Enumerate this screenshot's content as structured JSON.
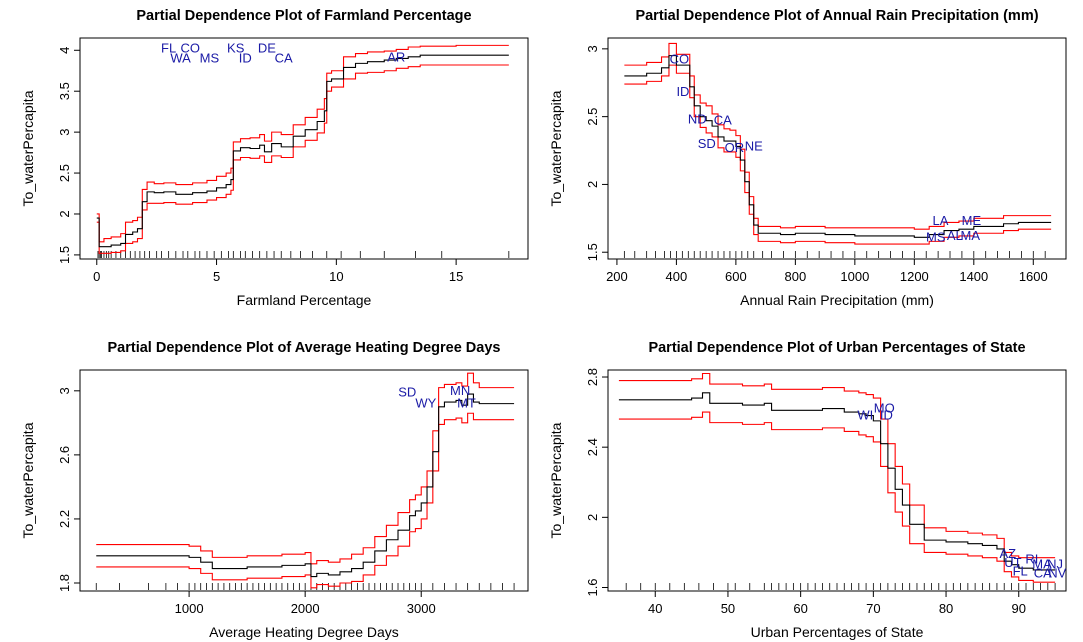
{
  "colors": {
    "estimate": "#000000",
    "confidence_band": "#ff0000",
    "state_label": "#1a1aa6",
    "rug": "#000000",
    "background": "#ffffff"
  },
  "chart_data": [
    {
      "type": "line",
      "title": "Partial Dependence Plot of Farmland Percentage",
      "xlabel": "Farmland Percentage",
      "ylabel": "To_waterPercapita",
      "xlim": [
        -0.7,
        18.0
      ],
      "ylim": [
        1.45,
        4.15
      ],
      "xticks": [
        0,
        5,
        10,
        15
      ],
      "yticks": [
        1.5,
        2.0,
        2.5,
        3.0,
        3.5,
        4.0
      ],
      "x": [
        0,
        0.1,
        0.3,
        0.6,
        1.0,
        1.2,
        1.5,
        1.7,
        1.9,
        2.1,
        2.4,
        2.8,
        3.3,
        4.0,
        4.6,
        5.0,
        5.4,
        5.6,
        5.7,
        6.0,
        6.4,
        6.8,
        7.0,
        7.3,
        7.7,
        8.2,
        8.7,
        9.2,
        9.5,
        9.6,
        9.8,
        10.3,
        10.8,
        11.3,
        12.0,
        12.5,
        13.0,
        13.5,
        15.0,
        17.2
      ],
      "series": [
        {
          "role": "estimate",
          "values": [
            1.95,
            1.6,
            1.6,
            1.62,
            1.64,
            1.75,
            1.78,
            1.82,
            2.15,
            2.27,
            2.26,
            2.27,
            2.24,
            2.26,
            2.28,
            2.32,
            2.36,
            2.42,
            2.77,
            2.81,
            2.8,
            2.84,
            2.76,
            2.86,
            2.82,
            2.95,
            3.03,
            3.13,
            3.26,
            3.62,
            3.65,
            3.79,
            3.84,
            3.86,
            3.88,
            3.9,
            3.92,
            3.94,
            3.94,
            3.94
          ]
        },
        {
          "role": "upper",
          "values": [
            2.0,
            1.66,
            1.7,
            1.72,
            1.76,
            1.9,
            1.92,
            1.96,
            2.3,
            2.39,
            2.37,
            2.38,
            2.36,
            2.38,
            2.41,
            2.46,
            2.5,
            2.56,
            2.88,
            2.92,
            2.93,
            2.97,
            2.89,
            3.0,
            2.97,
            3.09,
            3.18,
            3.28,
            3.41,
            3.72,
            3.75,
            3.92,
            3.96,
            3.98,
            3.99,
            4.01,
            4.04,
            4.05,
            4.06,
            4.06
          ]
        },
        {
          "role": "lower",
          "values": [
            1.9,
            1.52,
            1.52,
            1.53,
            1.55,
            1.64,
            1.66,
            1.7,
            2.05,
            2.13,
            2.13,
            2.14,
            2.12,
            2.14,
            2.17,
            2.2,
            2.24,
            2.29,
            2.66,
            2.69,
            2.68,
            2.71,
            2.63,
            2.71,
            2.69,
            2.82,
            2.9,
            2.99,
            3.11,
            3.5,
            3.55,
            3.65,
            3.72,
            3.73,
            3.75,
            3.78,
            3.8,
            3.82,
            3.82,
            3.82
          ]
        }
      ],
      "rug": [
        0.05,
        0.1,
        0.15,
        0.2,
        0.3,
        0.4,
        0.5,
        0.6,
        0.8,
        1.0,
        1.2,
        1.4,
        1.6,
        1.8,
        2.0,
        2.2,
        2.5,
        2.7,
        3.0,
        3.3,
        3.6,
        3.8,
        4.1,
        4.3,
        4.6,
        4.9,
        5.2,
        5.5,
        5.7,
        6.0,
        6.2,
        6.5,
        6.8,
        7.1,
        7.4,
        7.7,
        8.1,
        8.5,
        9.0,
        9.6,
        10.2,
        11.0,
        12.0,
        13.3,
        14.4,
        17.2
      ],
      "state_labels": [
        {
          "text": "FL",
          "x": 3.0,
          "y": 4.02
        },
        {
          "text": "CO",
          "x": 3.9,
          "y": 4.02
        },
        {
          "text": "KS",
          "x": 5.8,
          "y": 4.02
        },
        {
          "text": "DE",
          "x": 7.1,
          "y": 4.02
        },
        {
          "text": "WA",
          "x": 3.5,
          "y": 3.9
        },
        {
          "text": "MS",
          "x": 4.7,
          "y": 3.9
        },
        {
          "text": "ID",
          "x": 6.2,
          "y": 3.9
        },
        {
          "text": "CA",
          "x": 7.8,
          "y": 3.9
        },
        {
          "text": "AR",
          "x": 12.5,
          "y": 3.91
        }
      ]
    },
    {
      "type": "line",
      "title": "Partial Dependence Plot of Annual Rain Precipitation (mm)",
      "xlabel": "Annual Rain Precipitation (mm)",
      "ylabel": "To_waterPercapita",
      "xlim": [
        170,
        1710
      ],
      "ylim": [
        1.45,
        3.08
      ],
      "xticks": [
        200,
        400,
        600,
        800,
        1000,
        1200,
        1400,
        1600
      ],
      "yticks": [
        1.5,
        2.0,
        2.5,
        3.0
      ],
      "x": [
        225,
        300,
        350,
        375,
        400,
        425,
        445,
        460,
        480,
        500,
        520,
        540,
        560,
        580,
        600,
        615,
        630,
        645,
        660,
        675,
        700,
        750,
        800,
        900,
        1000,
        1100,
        1200,
        1250,
        1300,
        1350,
        1400,
        1500,
        1550,
        1660
      ],
      "series": [
        {
          "role": "estimate",
          "values": [
            2.8,
            2.82,
            2.86,
            2.95,
            2.88,
            2.88,
            2.72,
            2.58,
            2.5,
            2.47,
            2.43,
            2.35,
            2.32,
            2.32,
            2.28,
            2.18,
            2.02,
            1.85,
            1.7,
            1.64,
            1.64,
            1.63,
            1.64,
            1.63,
            1.62,
            1.62,
            1.61,
            1.63,
            1.66,
            1.67,
            1.69,
            1.71,
            1.72,
            1.72
          ]
        },
        {
          "role": "upper",
          "values": [
            2.88,
            2.9,
            2.94,
            3.04,
            2.96,
            2.96,
            2.8,
            2.66,
            2.6,
            2.58,
            2.52,
            2.44,
            2.41,
            2.4,
            2.36,
            2.26,
            2.09,
            1.91,
            1.75,
            1.69,
            1.69,
            1.68,
            1.69,
            1.68,
            1.68,
            1.68,
            1.67,
            1.69,
            1.72,
            1.73,
            1.75,
            1.77,
            1.77,
            1.77
          ]
        },
        {
          "role": "lower",
          "values": [
            2.74,
            2.76,
            2.8,
            2.88,
            2.82,
            2.82,
            2.64,
            2.5,
            2.42,
            2.38,
            2.35,
            2.27,
            2.24,
            2.24,
            2.2,
            2.1,
            1.94,
            1.78,
            1.63,
            1.58,
            1.58,
            1.57,
            1.58,
            1.57,
            1.56,
            1.56,
            1.56,
            1.58,
            1.61,
            1.62,
            1.64,
            1.66,
            1.67,
            1.67
          ]
        }
      ],
      "rug": [
        225,
        260,
        300,
        330,
        360,
        380,
        400,
        420,
        440,
        460,
        480,
        500,
        520,
        540,
        560,
        580,
        600,
        620,
        640,
        660,
        690,
        720,
        760,
        800,
        840,
        880,
        920,
        960,
        1000,
        1040,
        1080,
        1120,
        1160,
        1200,
        1240,
        1280,
        1320,
        1360,
        1400,
        1440,
        1480,
        1520,
        1560,
        1600,
        1640
      ],
      "state_labels": [
        {
          "text": "CO",
          "x": 410,
          "y": 2.92
        },
        {
          "text": "ID",
          "x": 422,
          "y": 2.68
        },
        {
          "text": "ND",
          "x": 470,
          "y": 2.48
        },
        {
          "text": "CA",
          "x": 556,
          "y": 2.47
        },
        {
          "text": "SD",
          "x": 502,
          "y": 2.3
        },
        {
          "text": "OR",
          "x": 595,
          "y": 2.27
        },
        {
          "text": "NE",
          "x": 660,
          "y": 2.28
        },
        {
          "text": "LA",
          "x": 1288,
          "y": 1.73
        },
        {
          "text": "ME",
          "x": 1392,
          "y": 1.73
        },
        {
          "text": "MS",
          "x": 1272,
          "y": 1.61
        },
        {
          "text": "AL",
          "x": 1336,
          "y": 1.62
        },
        {
          "text": "MA",
          "x": 1388,
          "y": 1.62
        }
      ]
    },
    {
      "type": "line",
      "title": "Partial Dependence Plot of Average Heating Degree Days",
      "xlabel": "Average Heating Degree Days",
      "ylabel": "To_waterPercapita",
      "xlim": [
        60,
        3920
      ],
      "ylim": [
        1.75,
        3.13
      ],
      "xticks": [
        1000,
        2000,
        3000
      ],
      "yticks": [
        1.8,
        2.2,
        2.6,
        3.0
      ],
      "x": [
        200,
        600,
        1000,
        1100,
        1200,
        1500,
        1800,
        2000,
        2050,
        2100,
        2200,
        2300,
        2400,
        2500,
        2600,
        2700,
        2800,
        2900,
        2950,
        3000,
        3050,
        3100,
        3150,
        3200,
        3300,
        3350,
        3400,
        3450,
        3500,
        3800
      ],
      "series": [
        {
          "role": "estimate",
          "values": [
            1.97,
            1.97,
            1.96,
            1.93,
            1.89,
            1.9,
            1.91,
            1.92,
            1.84,
            1.86,
            1.85,
            1.87,
            1.89,
            1.93,
            2.0,
            2.07,
            2.13,
            2.22,
            2.25,
            2.3,
            2.4,
            2.62,
            2.9,
            2.93,
            2.94,
            2.91,
            2.98,
            2.93,
            2.92,
            2.92
          ]
        },
        {
          "role": "upper",
          "values": [
            2.04,
            2.04,
            2.03,
            2.0,
            1.96,
            1.97,
            1.98,
            1.99,
            1.92,
            1.94,
            1.93,
            1.95,
            1.98,
            2.02,
            2.09,
            2.16,
            2.24,
            2.32,
            2.35,
            2.4,
            2.5,
            2.75,
            3.02,
            3.04,
            3.05,
            3.03,
            3.11,
            3.05,
            3.02,
            3.02
          ]
        },
        {
          "role": "lower",
          "values": [
            1.9,
            1.9,
            1.89,
            1.86,
            1.82,
            1.83,
            1.84,
            1.85,
            1.77,
            1.79,
            1.78,
            1.8,
            1.81,
            1.85,
            1.91,
            1.97,
            2.03,
            2.12,
            2.14,
            2.2,
            2.3,
            2.5,
            2.79,
            2.82,
            2.83,
            2.8,
            2.86,
            2.82,
            2.82,
            2.82
          ]
        }
      ],
      "rug": [
        200,
        400,
        650,
        800,
        900,
        1000,
        1050,
        1100,
        1150,
        1200,
        1250,
        1300,
        1350,
        1400,
        1450,
        1500,
        1550,
        1600,
        1650,
        1700,
        1750,
        1800,
        1850,
        1900,
        1950,
        2000,
        2050,
        2100,
        2150,
        2200,
        2250,
        2300,
        2350,
        2400,
        2450,
        2500,
        2550,
        2600,
        2650,
        2700,
        2750,
        2800,
        2850,
        2900,
        2950,
        3000,
        3100,
        3200,
        3300,
        3400,
        3500,
        3600,
        3700,
        3800
      ],
      "state_labels": [
        {
          "text": "SD",
          "x": 2880,
          "y": 2.99
        },
        {
          "text": "MN",
          "x": 3335,
          "y": 3.0
        },
        {
          "text": "WY",
          "x": 3040,
          "y": 2.92
        },
        {
          "text": "MT",
          "x": 3390,
          "y": 2.92
        }
      ]
    },
    {
      "type": "line",
      "title": "Partial Dependence Plot of Urban Percentages of State",
      "xlabel": "Urban Percentages of State",
      "ylabel": "To_waterPercapita",
      "xlim": [
        33.5,
        96.5
      ],
      "ylim": [
        1.58,
        2.84
      ],
      "xticks": [
        40,
        50,
        60,
        70,
        80,
        90
      ],
      "yticks": [
        1.6,
        2.0,
        2.4,
        2.8
      ],
      "x": [
        35,
        40,
        45,
        46.5,
        47.5,
        50,
        52,
        55,
        56,
        58,
        60,
        63,
        65,
        66,
        67,
        68,
        69,
        70,
        71,
        72,
        73,
        74,
        75,
        77,
        80,
        83,
        85,
        87,
        88,
        89,
        90,
        92,
        95
      ],
      "series": [
        {
          "role": "estimate",
          "values": [
            2.67,
            2.67,
            2.68,
            2.71,
            2.65,
            2.65,
            2.64,
            2.65,
            2.61,
            2.61,
            2.61,
            2.62,
            2.62,
            2.6,
            2.6,
            2.59,
            2.58,
            2.55,
            2.42,
            2.28,
            2.16,
            2.07,
            1.96,
            1.87,
            1.86,
            1.85,
            1.84,
            1.82,
            1.75,
            1.73,
            1.71,
            1.7,
            1.7
          ]
        },
        {
          "role": "upper",
          "values": [
            2.78,
            2.78,
            2.79,
            2.82,
            2.76,
            2.76,
            2.75,
            2.76,
            2.73,
            2.73,
            2.73,
            2.74,
            2.74,
            2.72,
            2.72,
            2.71,
            2.7,
            2.68,
            2.56,
            2.42,
            2.29,
            2.19,
            2.07,
            1.94,
            1.92,
            1.91,
            1.9,
            1.88,
            1.8,
            1.78,
            1.77,
            1.77,
            1.77
          ]
        },
        {
          "role": "lower",
          "values": [
            2.56,
            2.56,
            2.57,
            2.6,
            2.54,
            2.54,
            2.53,
            2.54,
            2.5,
            2.5,
            2.5,
            2.51,
            2.51,
            2.49,
            2.49,
            2.47,
            2.46,
            2.43,
            2.29,
            2.14,
            2.03,
            1.95,
            1.85,
            1.8,
            1.79,
            1.78,
            1.77,
            1.75,
            1.69,
            1.66,
            1.64,
            1.63,
            1.63
          ]
        }
      ],
      "rug": [
        36,
        38,
        40,
        42,
        44,
        46,
        48,
        50,
        51,
        53,
        55,
        56,
        57,
        58,
        59,
        60,
        61,
        62,
        63,
        64,
        65,
        66,
        67,
        68,
        69,
        70,
        71,
        72,
        73,
        74,
        75,
        76,
        77,
        78,
        79,
        80,
        81,
        82,
        83,
        84,
        85,
        86,
        87,
        88,
        89,
        90,
        91,
        92,
        93,
        94,
        95
      ],
      "state_labels": [
        {
          "text": "MO",
          "x": 71.5,
          "y": 2.62
        },
        {
          "text": "WI",
          "x": 68.9,
          "y": 2.58
        },
        {
          "text": "ID",
          "x": 71.8,
          "y": 2.58
        },
        {
          "text": "AZ",
          "x": 88.5,
          "y": 1.79
        },
        {
          "text": "UT",
          "x": 89.2,
          "y": 1.74
        },
        {
          "text": "RI",
          "x": 91.8,
          "y": 1.76
        },
        {
          "text": "MA",
          "x": 93.2,
          "y": 1.73
        },
        {
          "text": "NJ",
          "x": 95.0,
          "y": 1.73
        },
        {
          "text": "FL",
          "x": 90.2,
          "y": 1.69
        },
        {
          "text": "CA",
          "x": 93.3,
          "y": 1.68
        },
        {
          "text": "NV",
          "x": 95.3,
          "y": 1.68
        }
      ]
    }
  ]
}
